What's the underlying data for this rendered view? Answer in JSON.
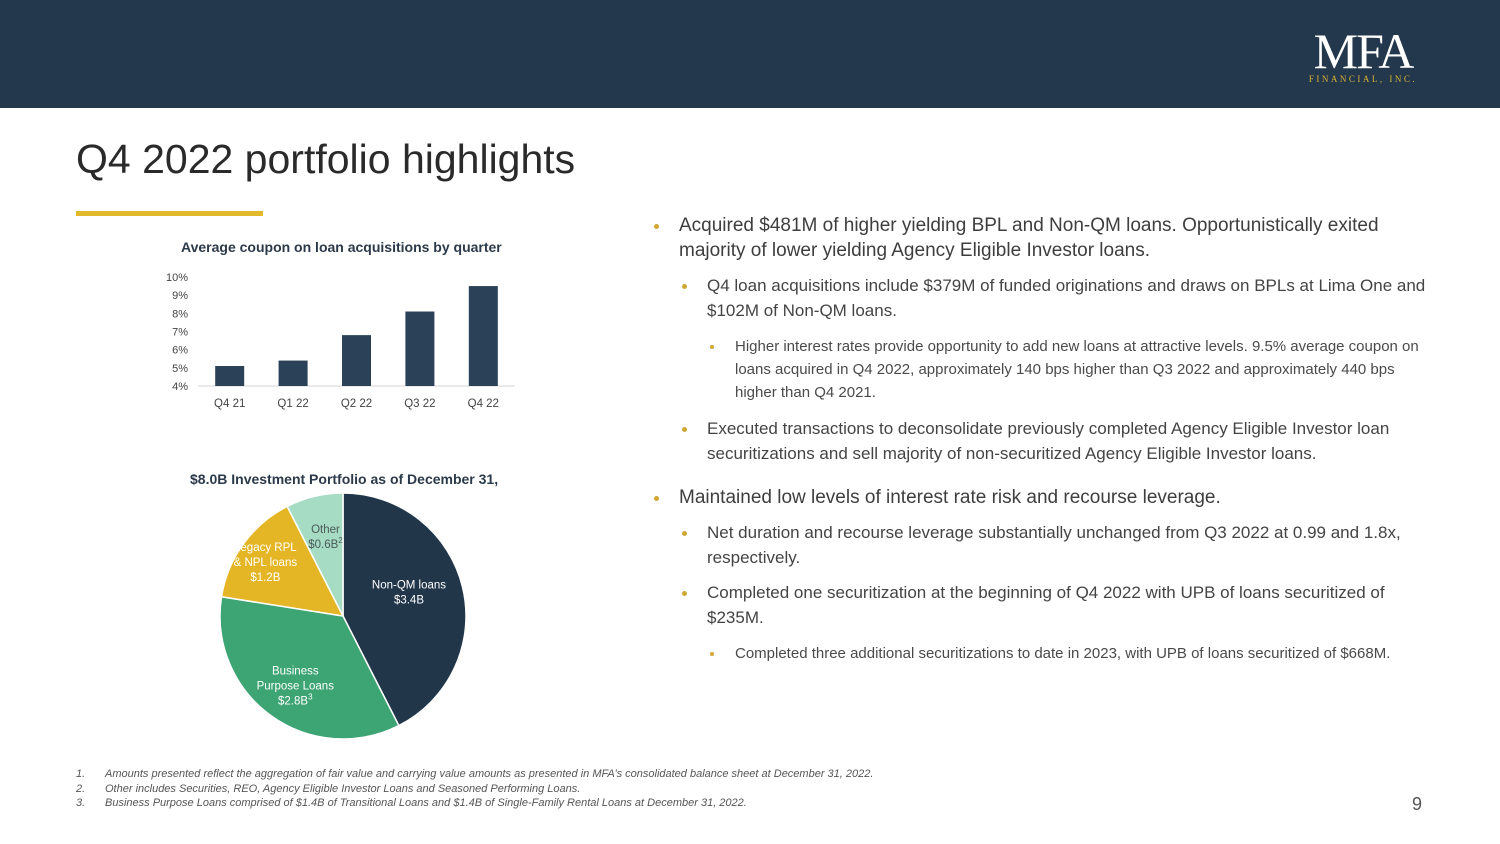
{
  "header": {
    "logo_main": "MFA",
    "logo_sub": "FINANCIAL, INC.",
    "bg_color": "#23374d"
  },
  "title": "Q4 2022 portfolio highlights",
  "accent_color": "#e2b92b",
  "chart_data": [
    {
      "type": "bar",
      "title": "Average coupon on loan acquisitions by quarter",
      "categories": [
        "Q4 21",
        "Q1 22",
        "Q2 22",
        "Q3 22",
        "Q4 22"
      ],
      "values": [
        5.1,
        5.4,
        6.8,
        8.1,
        9.5
      ],
      "ylim": [
        4,
        10
      ],
      "ytick_labels": [
        "4%",
        "5%",
        "6%",
        "7%",
        "8%",
        "9%",
        "10%"
      ],
      "ytick_values": [
        4,
        5,
        6,
        7,
        8,
        9,
        10
      ],
      "xlabel": "",
      "ylabel": "",
      "grid": false,
      "color": "#2a4157"
    },
    {
      "type": "pie",
      "title": "$8.0B Investment Portfolio as of December 31,",
      "slices": [
        {
          "label": "Non-QM loans",
          "value_text": "$3.4B",
          "sup": "",
          "value": 3.4,
          "color": "#22364a",
          "text_color": "#ffffff"
        },
        {
          "label": "Business Purpose Loans",
          "value_text": "$2.8B",
          "sup": "3",
          "value": 2.8,
          "color": "#3da473",
          "text_color": "#ffffff"
        },
        {
          "label": "Legacy RPL & NPL loans",
          "value_text": "$1.2B",
          "sup": "",
          "value": 1.2,
          "color": "#e4b524",
          "text_color": "#ffffff"
        },
        {
          "label": "Other",
          "value_text": "$0.6B",
          "sup": "2",
          "value": 0.6,
          "color": "#a6dcc3",
          "text_color": "#4c5a5a"
        }
      ]
    }
  ],
  "bullets": [
    {
      "level": 1,
      "text": "Acquired $481M of higher yielding BPL and Non-QM loans. Opportunistically exited majority of lower yielding Agency Eligible Investor loans."
    },
    {
      "level": 2,
      "text": "Q4 loan acquisitions include $379M of funded originations and draws on BPLs at Lima One and $102M of Non-QM loans."
    },
    {
      "level": 3,
      "text": "Higher interest rates provide opportunity to add new loans at attractive levels. 9.5% average coupon on loans acquired in Q4 2022, approximately 140 bps higher than Q3 2022 and approximately 440 bps higher than Q4 2021."
    },
    {
      "level": 2,
      "text": "Executed transactions to deconsolidate previously completed Agency Eligible Investor loan securitizations and sell majority of non-securitized Agency Eligible Investor loans."
    },
    {
      "level": 1,
      "text": "Maintained low levels of interest rate risk and recourse leverage."
    },
    {
      "level": 2,
      "text": "Net duration and recourse leverage substantially unchanged from Q3 2022 at 0.99 and 1.8x, respectively."
    },
    {
      "level": 2,
      "text": "Completed one securitization at the beginning of Q4 2022 with UPB of loans securitized of $235M."
    },
    {
      "level": 3,
      "text": "Completed three additional securitizations to date in 2023, with UPB of loans securitized of $668M."
    }
  ],
  "footnotes": [
    {
      "num": "1.",
      "text": "Amounts presented reflect the aggregation of fair value and carrying value amounts as presented in MFA’s consolidated balance sheet at December 31, 2022."
    },
    {
      "num": "2.",
      "text": "Other includes Securities, REO, Agency Eligible Investor Loans and Seasoned Performing Loans."
    },
    {
      "num": "3.",
      "text": "Business Purpose Loans comprised of $1.4B of Transitional Loans and $1.4B of Single-Family Rental Loans at December 31, 2022."
    }
  ],
  "page_number": "9"
}
